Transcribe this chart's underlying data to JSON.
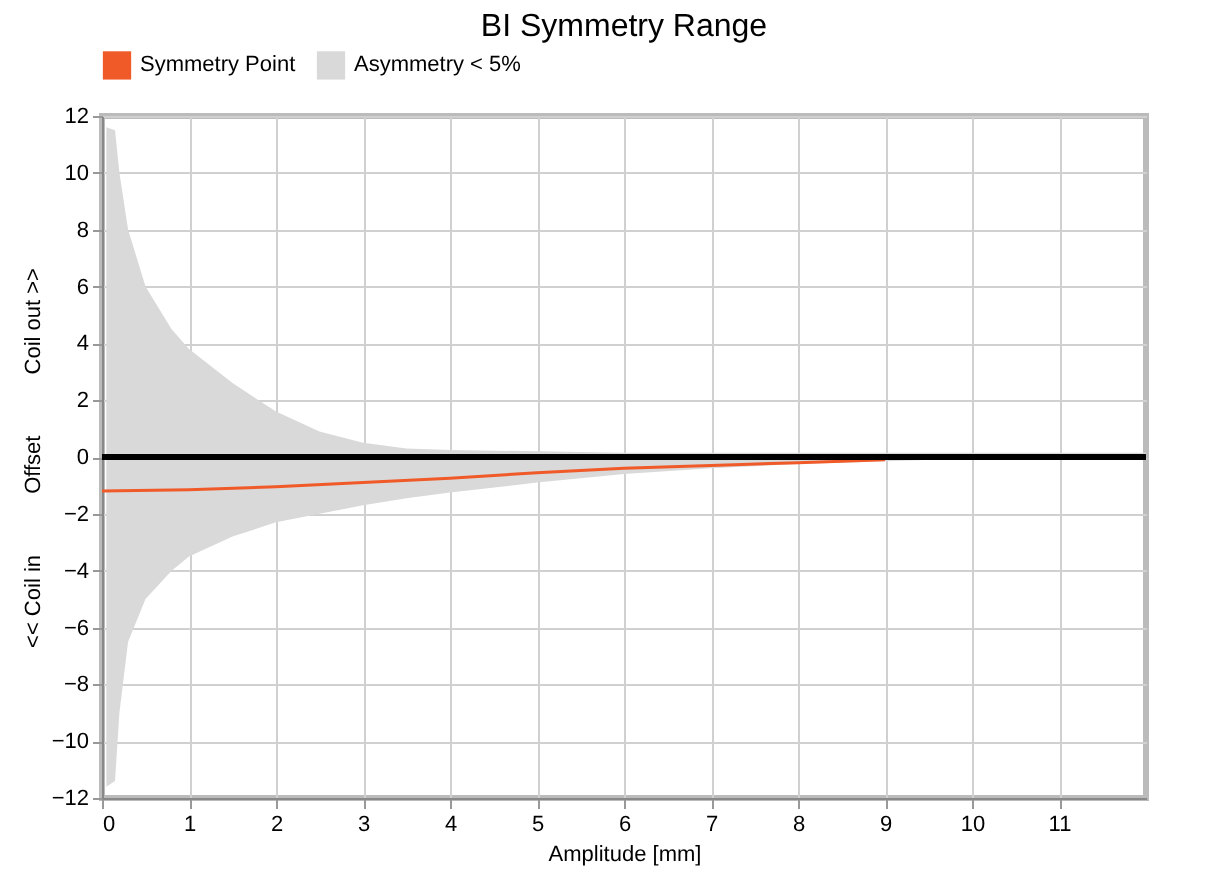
{
  "chart_data": {
    "type": "line",
    "title": "BI Symmetry Range",
    "xlabel": "Amplitude [mm]",
    "ylabel": "<< Coil in          Offset          Coil out >>",
    "xlim": [
      0,
      12
    ],
    "xticks": [
      0,
      1,
      2,
      3,
      4,
      5,
      6,
      7,
      8,
      9,
      10,
      11
    ],
    "ylim": [
      -12,
      12
    ],
    "yticks": [
      -12,
      -10,
      -8,
      -6,
      -4,
      -2,
      0,
      2,
      4,
      6,
      8,
      10,
      12
    ],
    "grid": true,
    "legend": "top",
    "ref_lines": [
      {
        "axis": "y",
        "value": 0,
        "color": "#000000"
      }
    ],
    "series": [
      {
        "name": "Symmetry Point",
        "type": "line",
        "color": "#f05a28",
        "x": [
          0,
          1,
          2,
          3,
          4,
          5,
          6,
          7,
          8,
          9
        ],
        "values": [
          -1.2,
          -1.15,
          -1.05,
          -0.9,
          -0.75,
          -0.55,
          -0.4,
          -0.3,
          -0.2,
          -0.1
        ]
      },
      {
        "name": "Asymmetry < 5%",
        "type": "line",
        "color": "#d9d9d9",
        "x": [
          0.05,
          0.15,
          0.2,
          0.3,
          0.5,
          0.8,
          1,
          1.5,
          2,
          2.5,
          3,
          3.5,
          4,
          5,
          6,
          7,
          8,
          9,
          10,
          11,
          12
        ],
        "values": [
          null,
          null,
          null,
          null,
          null,
          null,
          null,
          null,
          null,
          null,
          null,
          null,
          null,
          null,
          null,
          null,
          null,
          null,
          null,
          null,
          null
        ],
        "lower": [
          -11.6,
          -11.4,
          -9,
          -6.5,
          -5,
          -4,
          -3.5,
          -2.8,
          -2.3,
          -2,
          -1.7,
          -1.45,
          -1.25,
          -0.9,
          -0.6,
          -0.4,
          -0.25,
          -0.15,
          -0.05,
          0,
          0
        ],
        "upper": [
          11.6,
          11.5,
          10,
          8,
          6,
          4.5,
          3.8,
          2.6,
          1.6,
          0.9,
          0.5,
          0.3,
          0.25,
          0.2,
          0.15,
          0.15,
          0.15,
          0.15,
          0.15,
          0.15,
          0.15
        ]
      }
    ]
  }
}
